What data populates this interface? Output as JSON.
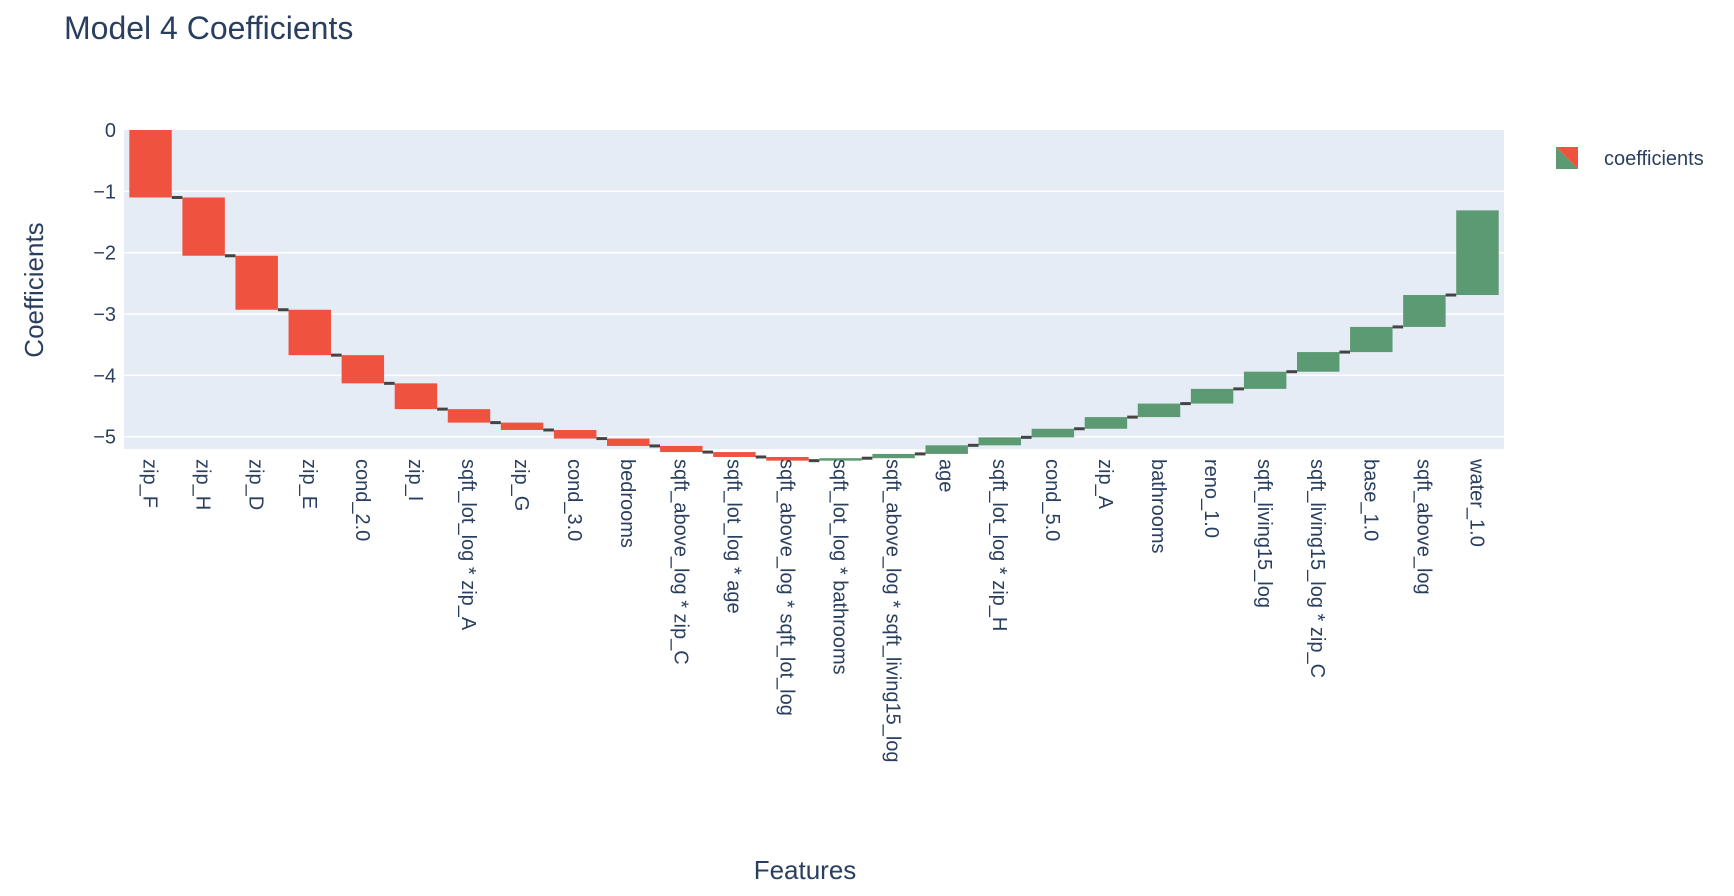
{
  "chart_data": {
    "type": "waterfall",
    "title": "Model 4 Coefficients",
    "xlabel": "Features",
    "ylabel": "Coefficients",
    "ylim": [
      -5.2,
      0
    ],
    "yticks": [
      0,
      -1,
      -2,
      -3,
      -4,
      -5
    ],
    "ytick_labels": [
      "0",
      "−1",
      "−2",
      "−3",
      "−4",
      "−5"
    ],
    "legend": {
      "label": "coefficients",
      "position": "top-right"
    },
    "colors": {
      "decreasing": "#ef5340",
      "increasing": "#5b9a72",
      "connector": "#444444",
      "plot_bg": "#e5ecf6",
      "grid": "#ffffff",
      "text": "#2a3f5f"
    },
    "categories": [
      "zip_F",
      "zip_H",
      "zip_D",
      "zip_E",
      "cond_2.0",
      "zip_I",
      "sqft_lot_log * zip_A",
      "zip_G",
      "cond_3.0",
      "bedrooms",
      "sqft_above_log * zip_C",
      "sqft_lot_log * age",
      "sqft_above_log * sqft_lot_log",
      "sqft_lot_log * bathrooms",
      "sqft_above_log * sqft_living15_log",
      "age",
      "sqft_lot_log * zip_H",
      "cond_5.0",
      "zip_A",
      "bathrooms",
      "reno_1.0",
      "sqft_living15_log",
      "sqft_living15_log * zip_C",
      "base_1.0",
      "sqft_above_log",
      "water_1.0"
    ],
    "values": [
      -1.1,
      -0.95,
      -0.88,
      -0.74,
      -0.46,
      -0.42,
      -0.22,
      -0.12,
      -0.14,
      -0.12,
      -0.1,
      -0.08,
      -0.06,
      0.04,
      0.07,
      0.14,
      0.13,
      0.14,
      0.19,
      0.22,
      0.24,
      0.28,
      0.32,
      0.41,
      0.52,
      1.38
    ]
  }
}
